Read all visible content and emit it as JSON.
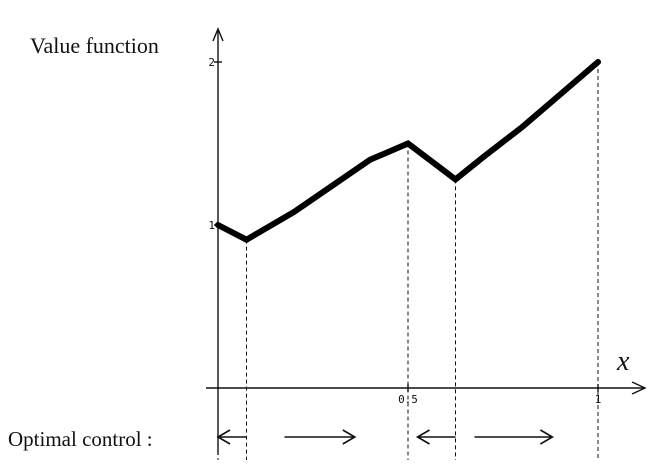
{
  "chart_data": {
    "type": "line",
    "title": "",
    "ylabel": "Value function",
    "xlabel": "x",
    "xlim": [
      0,
      1
    ],
    "ylim": [
      0,
      2
    ],
    "x_ticks": [
      {
        "value": 0.5,
        "label": "0.5"
      },
      {
        "value": 1,
        "label": "1"
      }
    ],
    "y_ticks": [
      {
        "value": 1,
        "label": "1"
      },
      {
        "value": 2,
        "label": "2"
      }
    ],
    "series": [
      {
        "points": [
          [
            0,
            1.0
          ],
          [
            0.075,
            0.91
          ],
          [
            0.2,
            1.08
          ],
          [
            0.3,
            1.24
          ],
          [
            0.4,
            1.4
          ],
          [
            0.5,
            1.5
          ],
          [
            0.625,
            1.28
          ],
          [
            0.7,
            1.42
          ],
          [
            0.8,
            1.6
          ],
          [
            0.9,
            1.8
          ],
          [
            1.0,
            2.0
          ]
        ]
      }
    ],
    "switch_points": [
      0.075,
      0.5,
      0.625,
      1.0
    ],
    "control_label": "Optimal control :",
    "control_arrows": [
      {
        "from": 0.075,
        "to": 0.0,
        "direction": "left"
      },
      {
        "from": 0.175,
        "to": 0.36,
        "direction": "right"
      },
      {
        "from": 0.625,
        "to": 0.525,
        "direction": "left"
      },
      {
        "from": 0.675,
        "to": 0.88,
        "direction": "right"
      }
    ]
  }
}
